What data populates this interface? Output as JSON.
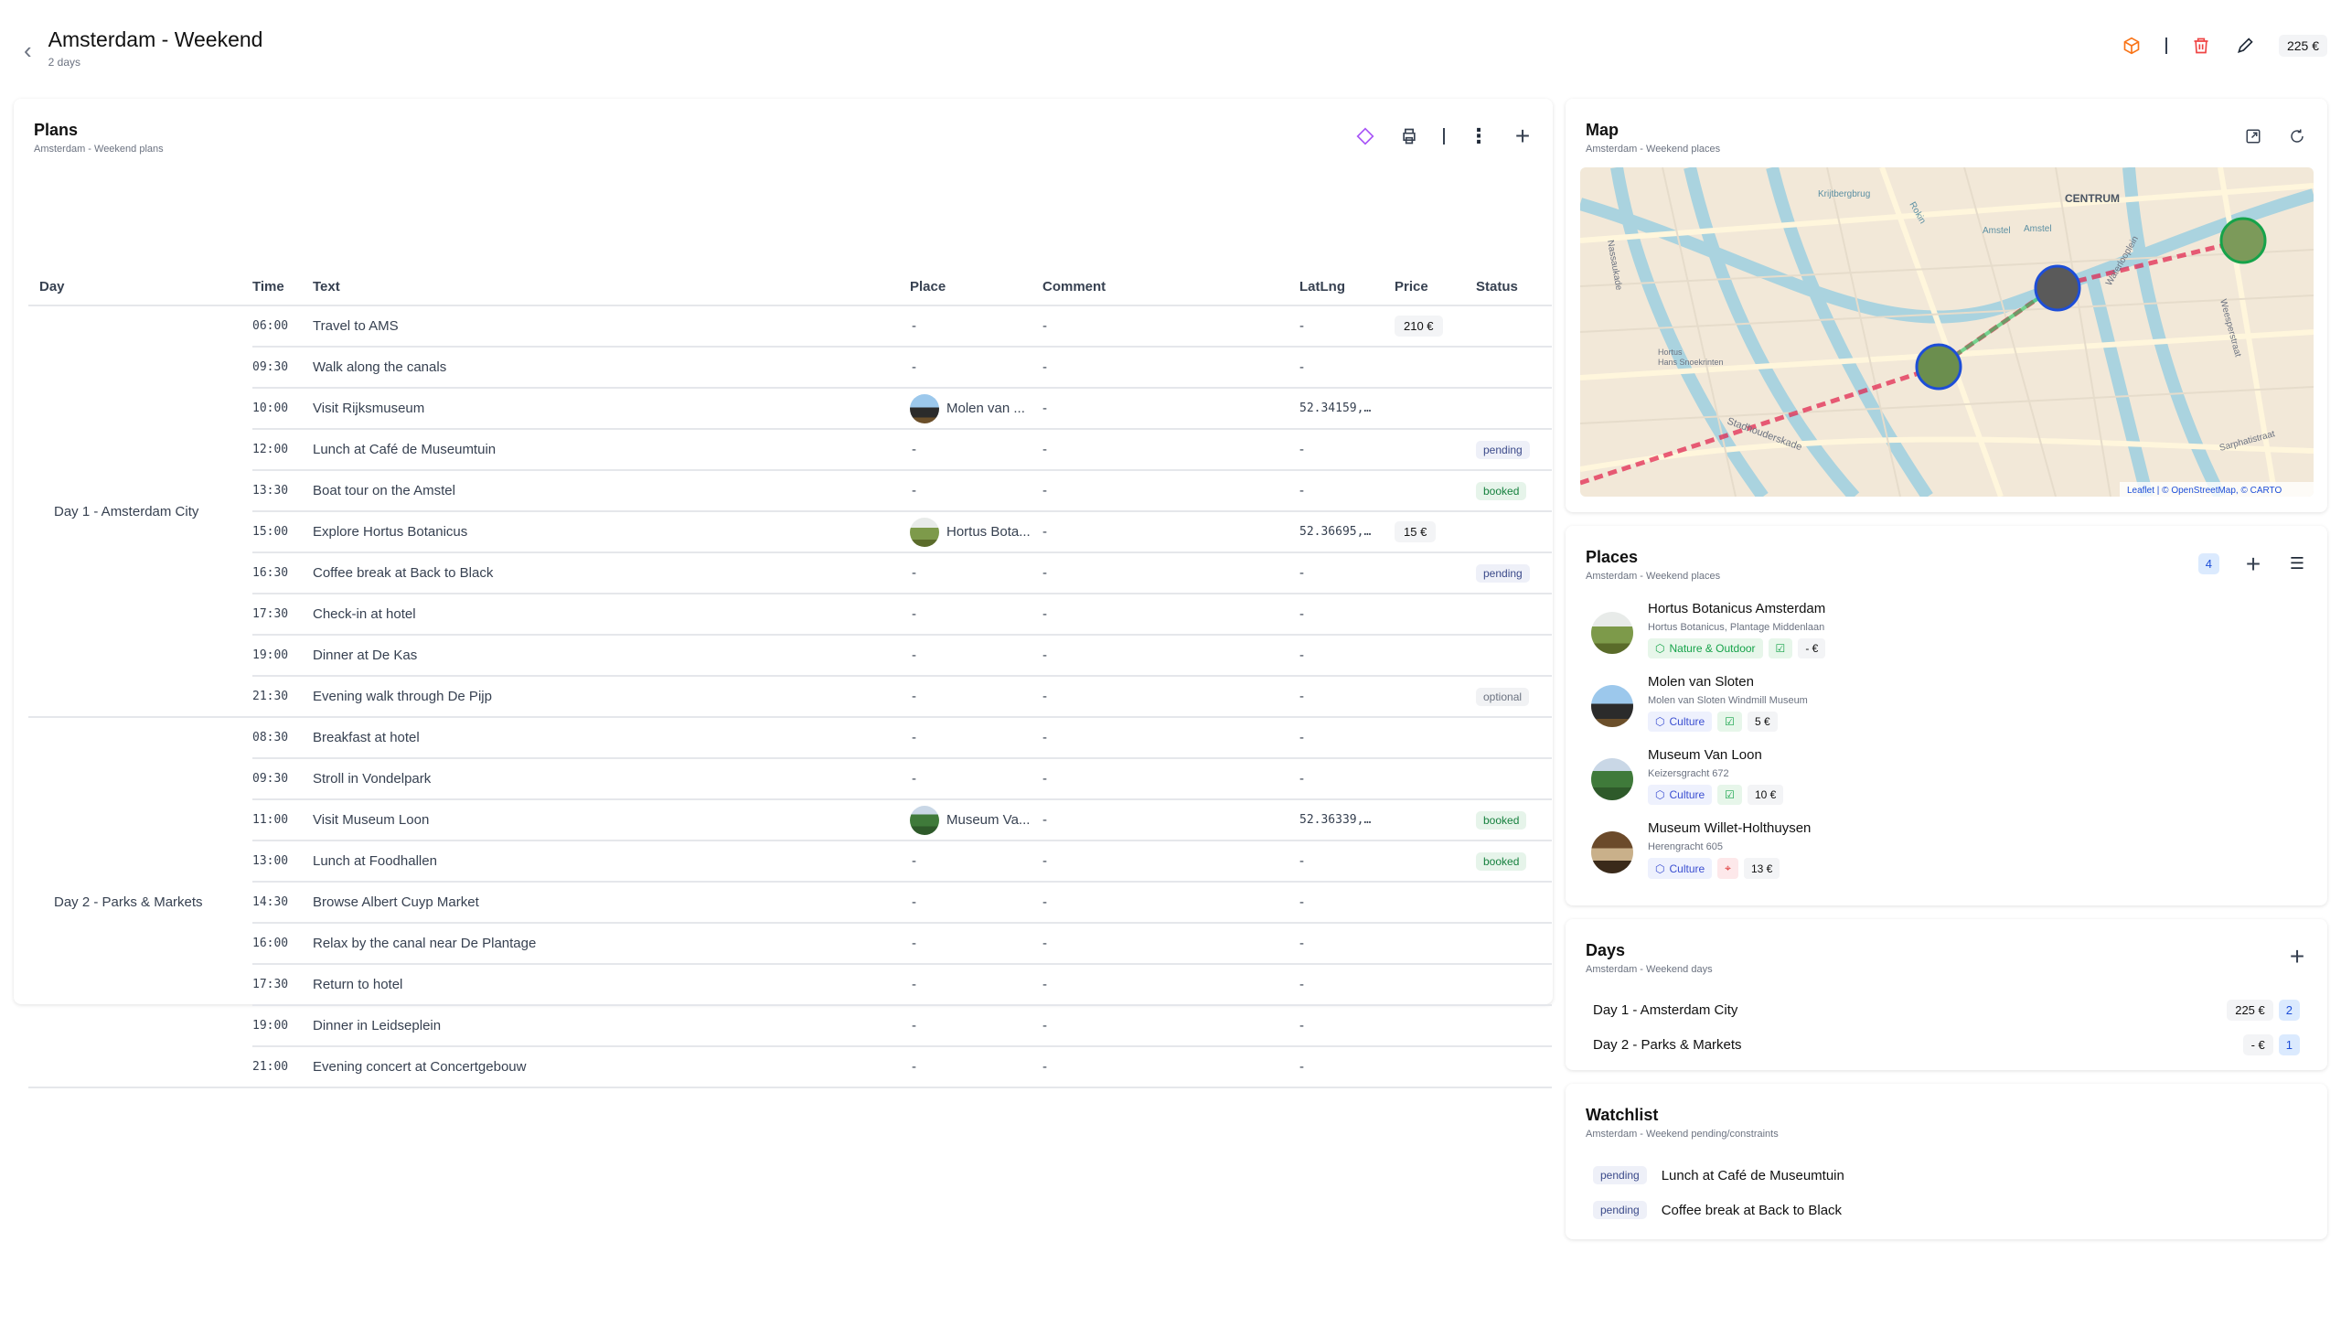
{
  "header": {
    "title": "Amsterdam - Weekend",
    "subtitle": "2 days",
    "total": "225 €"
  },
  "plans": {
    "title": "Plans",
    "subtitle": "Amsterdam - Weekend plans",
    "columns": [
      "Day",
      "Time",
      "Text",
      "Place",
      "Comment",
      "LatLng",
      "Price",
      "Status"
    ],
    "days": [
      {
        "label": "Day 1 - Amsterdam City",
        "rows": [
          {
            "time": "06:00",
            "text": "Travel to AMS",
            "place": "-",
            "comment": "-",
            "latlng": "-",
            "price": "210 €",
            "status": ""
          },
          {
            "time": "09:30",
            "text": "Walk along the canals",
            "place": "-",
            "comment": "-",
            "latlng": "-",
            "price": "",
            "status": ""
          },
          {
            "time": "10:00",
            "text": "Visit Rijksmuseum",
            "place": "Molen van ...",
            "place_img": "windmill",
            "comment": "-",
            "latlng": "52.34159,…",
            "price": "",
            "status": ""
          },
          {
            "time": "12:00",
            "text": "Lunch at Café de Museumtuin",
            "place": "-",
            "comment": "-",
            "latlng": "-",
            "price": "",
            "status": "pending"
          },
          {
            "time": "13:30",
            "text": "Boat tour on the Amstel",
            "place": "-",
            "comment": "-",
            "latlng": "-",
            "price": "",
            "status": "booked"
          },
          {
            "time": "15:00",
            "text": "Explore Hortus Botanicus",
            "place": "Hortus Bota...",
            "place_img": "garden",
            "comment": "-",
            "latlng": "52.36695,…",
            "price": "15 €",
            "status": ""
          },
          {
            "time": "16:30",
            "text": "Coffee break at Back to Black",
            "place": "-",
            "comment": "-",
            "latlng": "-",
            "price": "",
            "status": "pending"
          },
          {
            "time": "17:30",
            "text": "Check-in at hotel",
            "place": "-",
            "comment": "-",
            "latlng": "-",
            "price": "",
            "status": ""
          },
          {
            "time": "19:00",
            "text": "Dinner at De Kas",
            "place": "-",
            "comment": "-",
            "latlng": "-",
            "price": "",
            "status": ""
          },
          {
            "time": "21:30",
            "text": "Evening walk through De Pijp",
            "place": "-",
            "comment": "-",
            "latlng": "-",
            "price": "",
            "status": "optional"
          }
        ]
      },
      {
        "label": "Day 2 - Parks & Markets",
        "rows": [
          {
            "time": "08:30",
            "text": "Breakfast at hotel",
            "place": "-",
            "comment": "-",
            "latlng": "-",
            "price": "",
            "status": ""
          },
          {
            "time": "09:30",
            "text": "Stroll in Vondelpark",
            "place": "-",
            "comment": "-",
            "latlng": "-",
            "price": "",
            "status": ""
          },
          {
            "time": "11:00",
            "text": "Visit Museum Loon",
            "place": "Museum Va...",
            "place_img": "museum",
            "comment": "-",
            "latlng": "52.36339,…",
            "price": "",
            "status": "booked"
          },
          {
            "time": "13:00",
            "text": "Lunch at Foodhallen",
            "place": "-",
            "comment": "-",
            "latlng": "-",
            "price": "",
            "status": "booked"
          },
          {
            "time": "14:30",
            "text": "Browse Albert Cuyp Market",
            "place": "-",
            "comment": "-",
            "latlng": "-",
            "price": "",
            "status": ""
          },
          {
            "time": "16:00",
            "text": "Relax by the canal near De Plantage",
            "place": "-",
            "comment": "-",
            "latlng": "-",
            "price": "",
            "status": ""
          },
          {
            "time": "17:30",
            "text": "Return to hotel",
            "place": "-",
            "comment": "-",
            "latlng": "-",
            "price": "",
            "status": ""
          },
          {
            "time": "19:00",
            "text": "Dinner in Leidseplein",
            "place": "-",
            "comment": "-",
            "latlng": "-",
            "price": "",
            "status": ""
          },
          {
            "time": "21:00",
            "text": "Evening concert at Concertgebouw",
            "place": "-",
            "comment": "-",
            "latlng": "-",
            "price": "",
            "status": ""
          }
        ]
      }
    ]
  },
  "map": {
    "title": "Map",
    "subtitle": "Amsterdam - Weekend places",
    "labels": [
      "CENTRUM",
      "Amstel",
      "Amstel",
      "Krijtbergbrug",
      "Rokin",
      "Waterlooplein",
      "Weesperstraat",
      "Stadhouderskade",
      "Sarphatistraat",
      "Nassaukade",
      "Hortus",
      "Hans Snoekrinten"
    ],
    "attribution": "Leaflet | © OpenStreetMap, © CARTO"
  },
  "places": {
    "title": "Places",
    "subtitle": "Amsterdam - Weekend places",
    "count": "4",
    "items": [
      {
        "name": "Hortus Botanicus Amsterdam",
        "address": "Hortus Botanicus, Plantage Middenlaan",
        "category": "Nature & Outdoor",
        "cat_color": "green",
        "status_icon": "check-square-icon",
        "price": "- €",
        "img": "garden"
      },
      {
        "name": "Molen van Sloten",
        "address": "Molen van Sloten Windmill Museum",
        "category": "Culture",
        "cat_color": "blue",
        "status_icon": "check-square-icon",
        "price": "5 €",
        "img": "windmill"
      },
      {
        "name": "Museum Van Loon",
        "address": "Keizersgracht 672",
        "category": "Culture",
        "cat_color": "blue",
        "status_icon": "check-square-icon",
        "price": "10 €",
        "img": "museum"
      },
      {
        "name": "Museum Willet-Holthuysen",
        "address": "Herengracht 605",
        "category": "Culture",
        "cat_color": "blue",
        "status_icon": "map-pin-icon",
        "price": "13 €",
        "img": "interior"
      }
    ]
  },
  "days": {
    "title": "Days",
    "subtitle": "Amsterdam - Weekend days",
    "items": [
      {
        "label": "Day 1 - Amsterdam City",
        "price": "225 €",
        "count": "2"
      },
      {
        "label": "Day 2 - Parks & Markets",
        "price": "- €",
        "count": "1"
      }
    ]
  },
  "watchlist": {
    "title": "Watchlist",
    "subtitle": "Amsterdam - Weekend pending/constraints",
    "items": [
      {
        "status": "pending",
        "text": "Lunch at Café de Museumtuin"
      },
      {
        "status": "pending",
        "text": "Coffee break at Back to Black"
      }
    ]
  },
  "colors": {
    "accent": "#3b82f6",
    "booked": "#15803d",
    "pending": "#3b4a8a",
    "danger": "#ef4444",
    "package": "#f97316",
    "route": "#e11d48"
  }
}
